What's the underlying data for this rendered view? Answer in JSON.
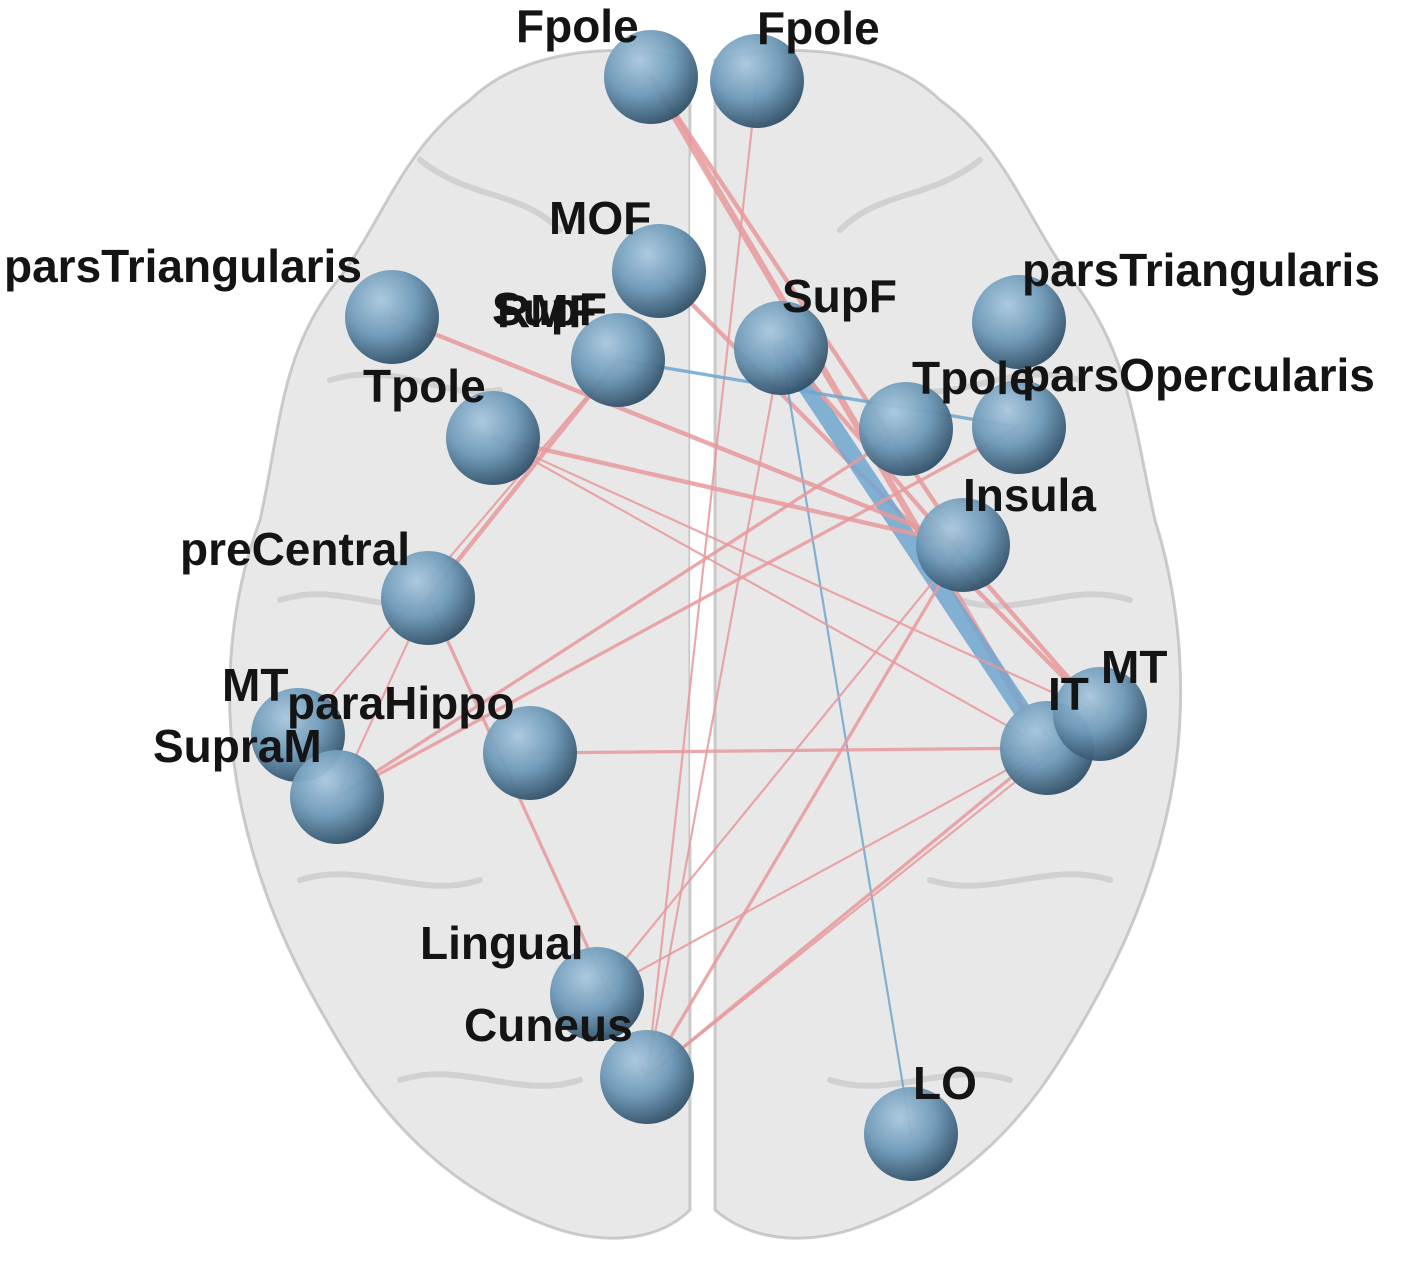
{
  "colors": {
    "positive_edge": "#e8999b",
    "negative_edge": "#6fa6cf",
    "node_fill": "#6d99b8",
    "node_dark": "#27455c",
    "node_highlight": "#a9c8de",
    "brain": "#d6d6d6"
  },
  "nodes": [
    {
      "id": "fpole-left",
      "label": "Fpole"
    },
    {
      "id": "fpole-right",
      "label": "Fpole"
    },
    {
      "id": "mof-left",
      "label": "MOF"
    },
    {
      "id": "rmf-left",
      "label": "RMF"
    },
    {
      "id": "supf-left",
      "label": "SupF"
    },
    {
      "id": "supf-right",
      "label": "SupF"
    },
    {
      "id": "parstriangularis-left",
      "label": "parsTriangularis"
    },
    {
      "id": "parstriangularis-right",
      "label": "parsTriangularis"
    },
    {
      "id": "parsopercularis-right",
      "label": "parsOpercularis"
    },
    {
      "id": "tpole-left",
      "label": "Tpole"
    },
    {
      "id": "tpole-right",
      "label": "Tpole"
    },
    {
      "id": "insula-right",
      "label": "Insula"
    },
    {
      "id": "precentral-left",
      "label": "preCentral"
    },
    {
      "id": "mt-left",
      "label": "MT"
    },
    {
      "id": "parahippo-left",
      "label": "paraHippo"
    },
    {
      "id": "supram-left",
      "label": "SupraM"
    },
    {
      "id": "it-right",
      "label": "IT"
    },
    {
      "id": "mt-right",
      "label": "MT"
    },
    {
      "id": "lingual-left",
      "label": "Lingual"
    },
    {
      "id": "cuneus-left",
      "label": "Cuneus"
    },
    {
      "id": "lo-right",
      "label": "LO"
    }
  ],
  "edges": [
    {
      "source": "fpole-left",
      "target": "it-right",
      "sign": "positive",
      "weight": 3
    },
    {
      "source": "fpole-left",
      "target": "insula-right",
      "sign": "positive",
      "weight": 2
    },
    {
      "source": "fpole-right",
      "target": "cuneus-left",
      "sign": "positive",
      "weight": 1
    },
    {
      "source": "mof-left",
      "target": "mt-right",
      "sign": "positive",
      "weight": 2
    },
    {
      "source": "supf-right",
      "target": "it-right",
      "sign": "negative",
      "weight": 8
    },
    {
      "source": "supf-right",
      "target": "lo-right",
      "sign": "negative",
      "weight": 1
    },
    {
      "source": "supf-right",
      "target": "mt-right",
      "sign": "positive",
      "weight": 2
    },
    {
      "source": "rmf-left",
      "target": "parsopercularis-right",
      "sign": "negative",
      "weight": 1.5
    },
    {
      "source": "rmf-left",
      "target": "precentral-left",
      "sign": "positive",
      "weight": 2
    },
    {
      "source": "rmf-left",
      "target": "mt-left",
      "sign": "positive",
      "weight": 1
    },
    {
      "source": "parstriangularis-left",
      "target": "insula-right",
      "sign": "positive",
      "weight": 2
    },
    {
      "source": "tpole-left",
      "target": "insula-right",
      "sign": "positive",
      "weight": 2
    },
    {
      "source": "tpole-left",
      "target": "mt-right",
      "sign": "positive",
      "weight": 1
    },
    {
      "source": "parsopercularis-right",
      "target": "supram-left",
      "sign": "positive",
      "weight": 1.5
    },
    {
      "source": "tpole-right",
      "target": "supram-left",
      "sign": "positive",
      "weight": 1.5
    },
    {
      "source": "precentral-left",
      "target": "cuneus-left",
      "sign": "positive",
      "weight": 1.5
    },
    {
      "source": "precentral-left",
      "target": "supram-left",
      "sign": "positive",
      "weight": 1
    },
    {
      "source": "insula-right",
      "target": "cuneus-left",
      "sign": "positive",
      "weight": 1.5
    },
    {
      "source": "insula-right",
      "target": "lingual-left",
      "sign": "positive",
      "weight": 1
    },
    {
      "source": "parahippo-left",
      "target": "it-right",
      "sign": "positive",
      "weight": 1.5
    },
    {
      "source": "it-right",
      "target": "cuneus-left",
      "sign": "positive",
      "weight": 1.5
    },
    {
      "source": "it-right",
      "target": "lingual-left",
      "sign": "positive",
      "weight": 1
    },
    {
      "source": "mt-right",
      "target": "cuneus-left",
      "sign": "positive",
      "weight": 1
    },
    {
      "source": "supf-right",
      "target": "cuneus-left",
      "sign": "positive",
      "weight": 1
    },
    {
      "source": "tpole-left",
      "target": "it-right",
      "sign": "positive",
      "weight": 1
    }
  ]
}
